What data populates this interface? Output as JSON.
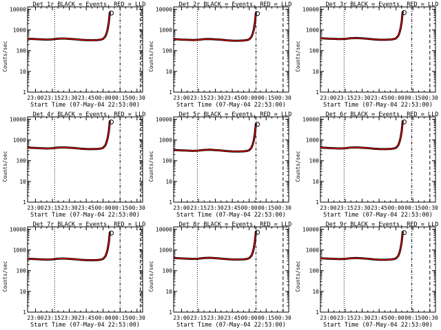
{
  "chart_data": {
    "type": "line",
    "panels": [
      {
        "title": "Det 1r BLACK = Events, RED = LLD",
        "flare_start": "23:17",
        "flare_end": "00:33",
        "peak_end": "00:15",
        "base": 380
      },
      {
        "title": "Det 2r BLACK = Events, RED = LLD",
        "flare_start": "23:14",
        "flare_end": "00:30",
        "peak_end": "00:06",
        "base": 360
      },
      {
        "title": "Det 3r BLACK = Events, RED = LLD",
        "flare_start": "23:14",
        "flare_end": "00:30",
        "peak_end": "00:14",
        "base": 400
      },
      {
        "title": "Det 4r BLACK = Events, RED = LLD",
        "flare_start": "23:17",
        "flare_end": "00:33",
        "peak_end": "00:15",
        "base": 430
      },
      {
        "title": "Det 5r BLACK = Events, RED = LLD",
        "flare_start": "23:14",
        "flare_end": "00:30",
        "peak_end": "00:06",
        "base": 330
      },
      {
        "title": "Det 6r BLACK = Events, RED = LLD",
        "flare_start": "23:14",
        "flare_end": "00:30",
        "peak_end": "00:14",
        "base": 430
      },
      {
        "title": "Det 7r BLACK = Events, RED = LLD",
        "flare_start": "23:17",
        "flare_end": "00:33",
        "peak_end": "00:15",
        "base": 380
      },
      {
        "title": "Det 8r BLACK = Events, RED = LLD",
        "flare_start": "23:14",
        "flare_end": "00:30",
        "peak_end": "00:06",
        "base": 410
      },
      {
        "title": "Det 9r BLACK = Events, RED = LLD",
        "flare_start": "23:14",
        "flare_end": "00:30",
        "peak_end": "00:14",
        "base": 400
      }
    ],
    "xlabel": "Start Time (07-May-04 22:53:00)",
    "ylabel": "Counts/sec",
    "x_ticks": [
      "23:00",
      "23:15",
      "23:30",
      "23:45",
      "00:00",
      "00:15",
      "00:30"
    ],
    "y_ticks": [
      "1",
      "10",
      "100",
      "1000",
      "10000"
    ],
    "x_range": [
      "22:53",
      "00:35"
    ],
    "y_range": [
      1,
      13000
    ],
    "y_scale": "log",
    "series": [
      {
        "name": "Events",
        "color": "#000000"
      },
      {
        "name": "LLD",
        "color": "#ff0000"
      }
    ],
    "profile_times": [
      "22:53",
      "23:00",
      "23:05",
      "23:10",
      "23:15",
      "23:20",
      "23:25",
      "23:30",
      "23:35",
      "23:40",
      "23:45",
      "23:50",
      "23:55",
      "23:58",
      "00:00",
      "00:02",
      "00:03",
      "00:04",
      "00:05",
      "00:06"
    ],
    "profile_factors": [
      1.0,
      0.95,
      0.93,
      0.9,
      0.93,
      1.0,
      1.02,
      0.98,
      0.94,
      0.88,
      0.85,
      0.84,
      0.86,
      0.9,
      0.98,
      1.3,
      1.8,
      2.8,
      6.0,
      20.0
    ]
  }
}
